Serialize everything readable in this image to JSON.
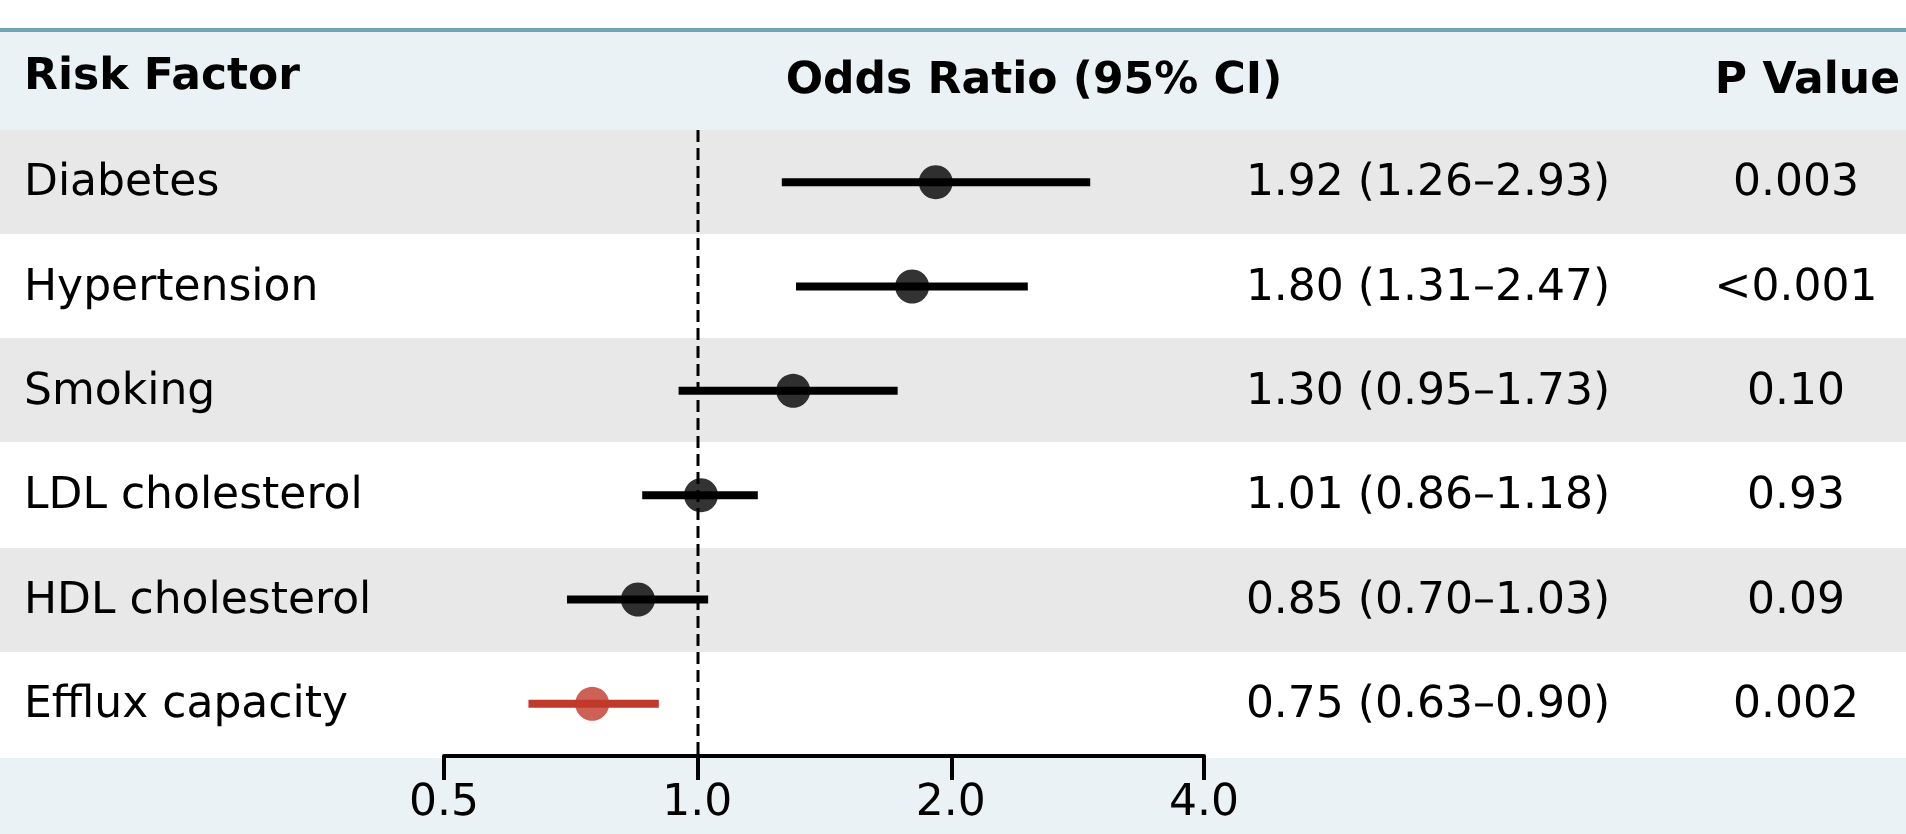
{
  "chart_data": {
    "type": "scatter",
    "orientation": "horizontal",
    "ylabel": "Risk Factor",
    "xlabel": "Odds Ratio (95% CI)",
    "categories": [
      "Diabetes",
      "Hypertension",
      "Smoking",
      "LDL cholesterol",
      "HDL cholesterol",
      "Efflux capacity"
    ],
    "values": [
      1.92,
      1.8,
      1.3,
      1.01,
      0.85,
      0.75
    ],
    "errors": [
      [
        1.26,
        2.93
      ],
      [
        1.31,
        2.47
      ],
      [
        0.95,
        1.73
      ],
      [
        0.86,
        1.18
      ],
      [
        0.7,
        1.03
      ],
      [
        0.63,
        0.9
      ]
    ],
    "colors": [
      "#000000",
      "#000000",
      "#000000",
      "#000000",
      "#000000",
      "#c0392b"
    ],
    "value_labels": [
      "1.92 (1.26–2.93)",
      "1.80 (1.31–2.47)",
      "1.30 (0.95–1.73)",
      "1.01 (0.86–1.18)",
      "0.85 (0.70–1.03)",
      "0.75 (0.63–0.90)"
    ],
    "annotations": [
      "P Value",
      "0.003",
      "<0.001",
      "0.10",
      "0.93",
      "0.09",
      "0.002"
    ],
    "log": "x",
    "xlim": [
      0.5,
      4
    ],
    "xticks": [
      0.5,
      {
        "value": 1,
        "label": "1.0"
      },
      {
        "value": 2,
        "label": "2.0"
      },
      {
        "value": 4,
        "label": "4.0"
      }
    ],
    "ref_lines": [
      {
        "axis": "x",
        "value": 1,
        "label": null,
        "line_style": "dashed",
        "color": "#000000"
      }
    ],
    "marker": "circle",
    "grid": false
  }
}
